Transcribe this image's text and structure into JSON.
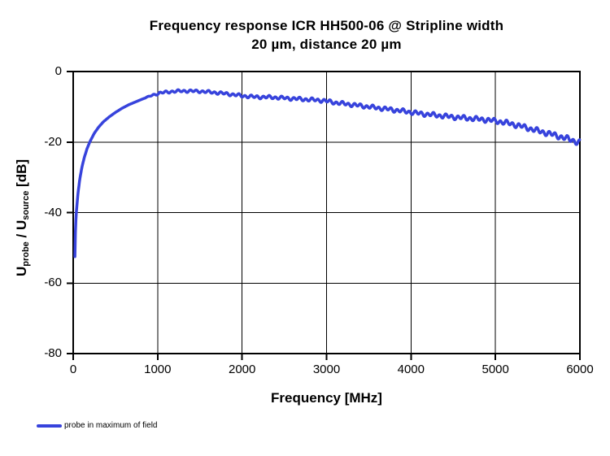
{
  "title": {
    "line1": "Frequency response ICR HH500-06 @ Stripline width",
    "line2": "20 µm, distance 20 µm"
  },
  "y_axis": {
    "label_u1": "U",
    "label_sub1": "probe",
    "label_mid": " / ",
    "label_u2": "U",
    "label_sub2": "source",
    "label_unit": " [dB]",
    "tick_labels": [
      "0",
      "-20",
      "-40",
      "-60",
      "-80"
    ]
  },
  "x_axis": {
    "title": "Frequency [MHz]",
    "tick_labels": [
      "0",
      "1000",
      "2000",
      "3000",
      "4000",
      "5000",
      "6000"
    ]
  },
  "legend": {
    "label": "probe in maximum of field"
  },
  "colors": {
    "line": "#3743dc",
    "grid": "#000000",
    "background": "#ffffff",
    "text": "#000000"
  },
  "chart_data": {
    "type": "line",
    "title": "Frequency response ICR HH500-06 @ Stripline width 20 µm, distance 20 µm",
    "xlabel": "Frequency [MHz]",
    "ylabel": "Uprobe / Usource [dB]",
    "xlim": [
      0,
      6000
    ],
    "ylim": [
      -80,
      0
    ],
    "x_ticks": [
      0,
      1000,
      2000,
      3000,
      4000,
      5000,
      6000
    ],
    "y_ticks": [
      0,
      -20,
      -40,
      -60,
      -80
    ],
    "grid": true,
    "legend_position": "bottom-left",
    "series": [
      {
        "name": "probe in maximum of field",
        "color": "#3743dc",
        "points": [
          [
            20,
            -52.5
          ],
          [
            24,
            -47
          ],
          [
            30,
            -43
          ],
          [
            40,
            -39
          ],
          [
            55,
            -35
          ],
          [
            75,
            -31
          ],
          [
            100,
            -27.5
          ],
          [
            130,
            -24.5
          ],
          [
            165,
            -21.8
          ],
          [
            200,
            -19.8
          ],
          [
            250,
            -17.5
          ],
          [
            300,
            -15.8
          ],
          [
            360,
            -14.2
          ],
          [
            430,
            -12.8
          ],
          [
            500,
            -11.6
          ],
          [
            580,
            -10.4
          ],
          [
            660,
            -9.4
          ],
          [
            750,
            -8.5
          ],
          [
            850,
            -7.5
          ],
          [
            950,
            -6.6
          ],
          [
            1050,
            -6.0
          ],
          [
            1150,
            -5.7
          ],
          [
            1300,
            -5.5
          ],
          [
            1500,
            -5.6
          ],
          [
            1700,
            -6.0
          ],
          [
            1850,
            -6.4
          ],
          [
            2000,
            -6.9
          ],
          [
            2150,
            -7.2
          ],
          [
            2350,
            -7.3
          ],
          [
            2550,
            -7.6
          ],
          [
            2750,
            -7.9
          ],
          [
            2950,
            -8.2
          ],
          [
            3100,
            -8.8
          ],
          [
            3300,
            -9.4
          ],
          [
            3500,
            -10.0
          ],
          [
            3700,
            -10.6
          ],
          [
            3900,
            -11.2
          ],
          [
            4100,
            -11.9
          ],
          [
            4300,
            -12.4
          ],
          [
            4500,
            -12.9
          ],
          [
            4700,
            -13.3
          ],
          [
            4900,
            -13.7
          ],
          [
            5050,
            -14.2
          ],
          [
            5200,
            -14.9
          ],
          [
            5350,
            -15.8
          ],
          [
            5500,
            -16.8
          ],
          [
            5650,
            -17.7
          ],
          [
            5800,
            -18.7
          ],
          [
            5900,
            -19.4
          ],
          [
            5970,
            -20.0
          ],
          [
            6000,
            -20.1
          ]
        ],
        "ripple": {
          "start_mhz": 820,
          "period_mhz": 72,
          "period2_mhz": 177,
          "amp_db_start": 0.25,
          "amp_db_end": 0.6
        }
      }
    ]
  }
}
